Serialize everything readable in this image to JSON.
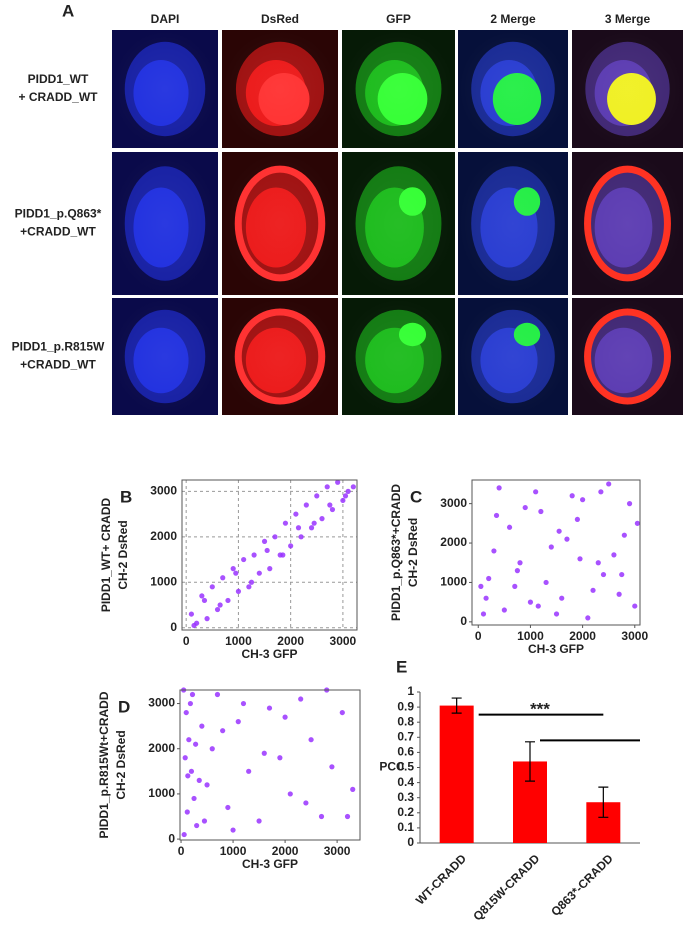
{
  "panel_a": {
    "label": "A",
    "columns": [
      "DAPI",
      "DsRed",
      "GFP",
      "2 Merge",
      "3 Merge"
    ],
    "rows": [
      [
        "PIDD1_WT",
        "+ CRADD_WT"
      ],
      [
        "PIDD1_p.Q863*",
        "+CRADD_WT"
      ],
      [
        "PIDD1_p.R815W",
        "+CRADD_WT"
      ]
    ]
  },
  "chart_data": [
    {
      "type": "scatter",
      "label": "B",
      "y_label": [
        "PIDD1_WT+ CRADD",
        "CH-2 DsRed"
      ],
      "x_label": "CH-3 GFP",
      "color": "#9933ff",
      "xlim": [
        -80,
        3270
      ],
      "ylim": [
        -50,
        3250
      ],
      "xticks": [
        0,
        1000,
        2000,
        3000
      ],
      "yticks": [
        0,
        1000,
        2000,
        3000
      ],
      "grid": true,
      "x": [
        100,
        200,
        300,
        400,
        500,
        600,
        700,
        800,
        900,
        1000,
        1100,
        1200,
        1300,
        1400,
        1500,
        1600,
        1700,
        1800,
        1900,
        2000,
        2100,
        2200,
        2300,
        2400,
        2500,
        2600,
        2700,
        2800,
        2900,
        3000,
        3100,
        3200,
        150,
        350,
        650,
        950,
        1250,
        1550,
        1850,
        2150,
        2450,
        2750,
        3050
      ],
      "values": [
        300,
        100,
        700,
        200,
        900,
        400,
        1100,
        600,
        1300,
        800,
        1500,
        900,
        1600,
        1200,
        1900,
        1300,
        2000,
        1600,
        2300,
        1800,
        2500,
        2000,
        2700,
        2200,
        2900,
        2400,
        3100,
        2600,
        3200,
        2800,
        3000,
        3100,
        50,
        600,
        500,
        1200,
        1000,
        1700,
        1600,
        2200,
        2300,
        2700,
        2900
      ]
    },
    {
      "type": "scatter",
      "label": "C",
      "y_label": [
        "PIDD1_p.Q863*+CRADD",
        "CH-2 DsRed"
      ],
      "x_label": "CH-3 GFP",
      "color": "#9933ff",
      "xlim": [
        -120,
        3100
      ],
      "ylim": [
        -80,
        3600
      ],
      "xticks": [
        0,
        1000,
        2000,
        3000
      ],
      "yticks": [
        0,
        1000,
        2000,
        3000
      ],
      "grid": false,
      "x": [
        100,
        400,
        800,
        1200,
        1600,
        2000,
        2400,
        2800,
        3000,
        300,
        700,
        1100,
        1500,
        1900,
        2300,
        2700,
        2900,
        200,
        600,
        1000,
        1400,
        1800,
        2200,
        2600,
        3050,
        500,
        900,
        1300,
        1700,
        2100,
        2500,
        50,
        350,
        750,
        1150,
        1550,
        1950,
        2350,
        2750,
        150
      ],
      "values": [
        200,
        3400,
        1500,
        2800,
        600,
        3100,
        1200,
        2200,
        400,
        1800,
        900,
        3300,
        200,
        2600,
        1500,
        700,
        3000,
        1100,
        2400,
        500,
        1900,
        3200,
        800,
        1700,
        2500,
        300,
        2900,
        1000,
        2100,
        100,
        3500,
        900,
        2700,
        1300,
        400,
        2300,
        1600,
        3300,
        1200,
        600
      ]
    },
    {
      "type": "scatter",
      "label": "D",
      "y_label": [
        "PIDD1_p.R815Wt+CRADD",
        "CH-2 DsRed"
      ],
      "x_label": "CH-3 GFP",
      "color": "#9933ff",
      "xlim": [
        -20,
        3440
      ],
      "ylim": [
        -20,
        3300
      ],
      "xticks": [
        0,
        1000,
        2000,
        3000
      ],
      "yticks": [
        0,
        1000,
        2000,
        3000
      ],
      "grid": false,
      "x": [
        50,
        100,
        150,
        200,
        250,
        300,
        80,
        120,
        180,
        400,
        500,
        600,
        700,
        900,
        1100,
        1300,
        1500,
        1700,
        1900,
        2100,
        2300,
        2500,
        2700,
        2900,
        3100,
        3300,
        60,
        220,
        350,
        800,
        1000,
        1200,
        1600,
        2000,
        2400,
        2800,
        3200,
        130,
        280,
        450
      ],
      "values": [
        3300,
        2800,
        2200,
        1500,
        900,
        300,
        1800,
        600,
        3000,
        2500,
        1200,
        2000,
        3200,
        700,
        2600,
        1500,
        400,
        2900,
        1800,
        1000,
        3100,
        2200,
        500,
        1600,
        2800,
        1100,
        100,
        3200,
        1300,
        2400,
        200,
        3000,
        1900,
        2700,
        800,
        3300,
        500,
        1400,
        2100,
        400
      ]
    },
    {
      "type": "bar",
      "label": "E",
      "y_label": "PCC",
      "color": "#ff0000",
      "categories": [
        "WT-CRADD",
        "Q815W-CRADD",
        "Q863*-CRADD"
      ],
      "values": [
        0.91,
        0.54,
        0.27
      ],
      "errors": [
        0.05,
        0.13,
        0.1
      ],
      "ylim": [
        0,
        1
      ],
      "yticks": [
        0,
        0.1,
        0.2,
        0.3,
        0.4,
        0.5,
        0.6,
        0.7,
        0.8,
        0.9,
        1
      ],
      "annotation": "***"
    }
  ]
}
